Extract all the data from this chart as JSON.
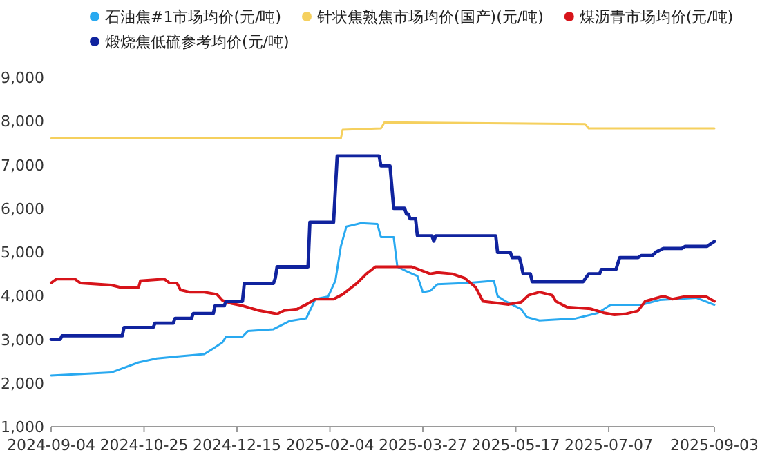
{
  "chart_data": {
    "type": "line",
    "xlim": [
      "2024-09-04",
      "2025-09-03"
    ],
    "xticks": [
      "2024-09-04",
      "2024-10-25",
      "2024-12-15",
      "2025-02-04",
      "2025-03-27",
      "2025-05-17",
      "2025-07-07",
      "2025-09-03"
    ],
    "ylim": [
      1000,
      9000
    ],
    "yticks": [
      {
        "value": 1000,
        "label": "1,000"
      },
      {
        "value": 2000,
        "label": "2,000"
      },
      {
        "value": 3000,
        "label": "3,000"
      },
      {
        "value": 4000,
        "label": "4,000"
      },
      {
        "value": 5000,
        "label": "5,000"
      },
      {
        "value": 6000,
        "label": "6,000"
      },
      {
        "value": 7000,
        "label": "7,000"
      },
      {
        "value": 8000,
        "label": "8,000"
      },
      {
        "value": 9000,
        "label": "9,000"
      }
    ],
    "grid": false,
    "legend": "top",
    "marker": "none",
    "line_style": "solid",
    "series": [
      {
        "name": "石油焦#1市场均价(元/吨)",
        "color": "#29a9f0",
        "x": [
          "2024-09-04",
          "2024-10-07",
          "2024-10-22",
          "2024-11-01",
          "2024-11-13",
          "2024-11-27",
          "2024-12-02",
          "2024-12-07",
          "2024-12-09",
          "2024-12-18",
          "2024-12-21",
          "2025-01-04",
          "2025-01-13",
          "2025-01-22",
          "2025-01-27",
          "2025-02-03",
          "2025-02-07",
          "2025-02-10",
          "2025-02-13",
          "2025-02-21",
          "2025-03-02",
          "2025-03-04",
          "2025-03-11",
          "2025-03-13",
          "2025-03-18",
          "2025-03-24",
          "2025-03-27",
          "2025-03-31",
          "2025-04-04",
          "2025-04-20",
          "2025-05-05",
          "2025-05-07",
          "2025-05-11",
          "2025-05-20",
          "2025-05-23",
          "2025-05-30",
          "2025-06-19",
          "2025-07-01",
          "2025-07-08",
          "2025-07-25",
          "2025-08-04",
          "2025-08-24",
          "2025-09-03"
        ],
        "values": [
          2170,
          2240,
          2470,
          2560,
          2610,
          2660,
          2790,
          2930,
          3060,
          3060,
          3190,
          3230,
          3420,
          3480,
          3920,
          3980,
          4340,
          5130,
          5580,
          5660,
          5640,
          5340,
          5340,
          4660,
          4560,
          4450,
          4080,
          4110,
          4260,
          4290,
          4340,
          3990,
          3880,
          3690,
          3510,
          3430,
          3480,
          3600,
          3790,
          3790,
          3900,
          3950,
          3790
        ]
      },
      {
        "name": "针状焦熟焦市场均价(国产)(元/吨)",
        "color": "#f5d05e",
        "x": [
          "2024-09-04",
          "2025-02-10",
          "2025-02-11",
          "2025-03-04",
          "2025-03-06",
          "2025-06-24",
          "2025-06-26",
          "2025-09-03"
        ],
        "values": [
          7600,
          7600,
          7800,
          7830,
          7970,
          7930,
          7830,
          7830
        ]
      },
      {
        "name": "煤沥青市场均价(元/吨)",
        "color": "#d7141a",
        "x": [
          "2024-09-04",
          "2024-09-07",
          "2024-09-17",
          "2024-09-20",
          "2024-10-07",
          "2024-10-12",
          "2024-10-22",
          "2024-10-23",
          "2024-11-05",
          "2024-11-08",
          "2024-11-12",
          "2024-11-14",
          "2024-11-19",
          "2024-11-27",
          "2024-12-04",
          "2024-12-07",
          "2024-12-12",
          "2024-12-18",
          "2024-12-27",
          "2025-01-06",
          "2025-01-10",
          "2025-01-17",
          "2025-01-23",
          "2025-01-27",
          "2025-02-06",
          "2025-02-11",
          "2025-02-19",
          "2025-02-24",
          "2025-03-01",
          "2025-03-21",
          "2025-03-31",
          "2025-04-04",
          "2025-04-12",
          "2025-04-19",
          "2025-04-25",
          "2025-04-29",
          "2025-05-13",
          "2025-05-20",
          "2025-05-24",
          "2025-05-30",
          "2025-06-06",
          "2025-06-08",
          "2025-06-14",
          "2025-06-27",
          "2025-07-04",
          "2025-07-10",
          "2025-07-16",
          "2025-07-23",
          "2025-07-27",
          "2025-08-06",
          "2025-08-11",
          "2025-08-19",
          "2025-08-29",
          "2025-09-03"
        ],
        "values": [
          4290,
          4380,
          4380,
          4290,
          4240,
          4190,
          4190,
          4340,
          4380,
          4290,
          4290,
          4130,
          4080,
          4080,
          4030,
          3890,
          3820,
          3770,
          3660,
          3580,
          3660,
          3690,
          3820,
          3920,
          3920,
          4030,
          4290,
          4500,
          4660,
          4660,
          4500,
          4530,
          4500,
          4400,
          4190,
          3870,
          3800,
          3850,
          4010,
          4080,
          4010,
          3870,
          3740,
          3700,
          3610,
          3560,
          3580,
          3650,
          3870,
          3990,
          3920,
          3990,
          3990,
          3870
        ]
      },
      {
        "name": "煅烧焦低硫参考均价(元/吨)",
        "color": "#10239e",
        "x": [
          "2024-09-04",
          "2024-09-09",
          "2024-09-10",
          "2024-10-13",
          "2024-10-14",
          "2024-10-30",
          "2024-10-31",
          "2024-11-10",
          "2024-11-11",
          "2024-11-20",
          "2024-11-21",
          "2024-12-02",
          "2024-12-03",
          "2024-12-08",
          "2024-12-09",
          "2024-12-18",
          "2024-12-19",
          "2025-01-04",
          "2025-01-05",
          "2025-01-06",
          "2025-01-23",
          "2025-01-24",
          "2025-02-06",
          "2025-02-08",
          "2025-03-03",
          "2025-03-04",
          "2025-03-09",
          "2025-03-11",
          "2025-03-17",
          "2025-03-18",
          "2025-03-19",
          "2025-03-20",
          "2025-03-23",
          "2025-03-24",
          "2025-04-01",
          "2025-04-02",
          "2025-04-03",
          "2025-05-06",
          "2025-05-07",
          "2025-05-14",
          "2025-05-15",
          "2025-05-19",
          "2025-05-20",
          "2025-05-21",
          "2025-05-25",
          "2025-05-26",
          "2025-06-23",
          "2025-06-26",
          "2025-07-02",
          "2025-07-03",
          "2025-07-11",
          "2025-07-13",
          "2025-07-23",
          "2025-07-25",
          "2025-07-31",
          "2025-08-02",
          "2025-08-06",
          "2025-08-16",
          "2025-08-18",
          "2025-08-30",
          "2025-09-03"
        ],
        "values": [
          3000,
          3000,
          3080,
          3080,
          3270,
          3270,
          3370,
          3370,
          3480,
          3480,
          3590,
          3590,
          3770,
          3770,
          3870,
          3870,
          4280,
          4280,
          4400,
          4660,
          4660,
          5680,
          5680,
          7200,
          7200,
          6970,
          6970,
          6000,
          6000,
          5870,
          5870,
          5760,
          5760,
          5370,
          5370,
          5250,
          5370,
          5370,
          4990,
          4990,
          4870,
          4870,
          4710,
          4500,
          4500,
          4320,
          4320,
          4500,
          4500,
          4600,
          4600,
          4870,
          4870,
          4920,
          4920,
          5000,
          5080,
          5080,
          5130,
          5130,
          5240
        ]
      }
    ]
  }
}
